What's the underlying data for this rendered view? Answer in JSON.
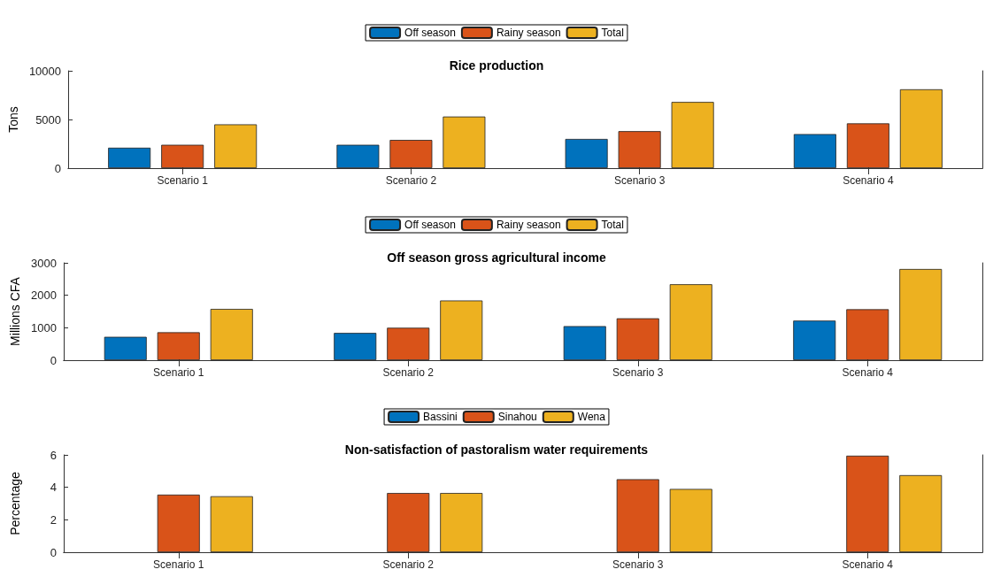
{
  "chart_data": [
    {
      "type": "bar",
      "title": "Rice production",
      "ylabel": "Tons",
      "categories": [
        "Scenario 1",
        "Scenario 2",
        "Scenario 3",
        "Scenario 4"
      ],
      "series": [
        {
          "name": "Off season",
          "color": "#0072bd",
          "values": [
            2100,
            2400,
            3000,
            3500
          ]
        },
        {
          "name": "Rainy season",
          "color": "#d95319",
          "values": [
            2400,
            2900,
            3800,
            4600
          ]
        },
        {
          "name": "Total",
          "color": "#edb120",
          "values": [
            4500,
            5300,
            6800,
            8100
          ]
        }
      ],
      "ylim": [
        0,
        10000
      ],
      "yticks": [
        0,
        5000,
        10000
      ],
      "grid": false,
      "legend": "top"
    },
    {
      "type": "bar",
      "title": "Off season gross agricultural income",
      "ylabel": "Millions CFA",
      "categories": [
        "Scenario 1",
        "Scenario 2",
        "Scenario 3",
        "Scenario 4"
      ],
      "series": [
        {
          "name": "Off season",
          "color": "#0072bd",
          "values": [
            720,
            840,
            1050,
            1220
          ]
        },
        {
          "name": "Rainy season",
          "color": "#d95319",
          "values": [
            860,
            1000,
            1290,
            1570
          ]
        },
        {
          "name": "Total",
          "color": "#edb120",
          "values": [
            1580,
            1840,
            2340,
            2810
          ]
        }
      ],
      "ylim": [
        0,
        3000
      ],
      "yticks": [
        0,
        1000,
        2000,
        3000
      ],
      "grid": false,
      "legend": "top"
    },
    {
      "type": "bar",
      "title": "Non-satisfaction of pastoralism water requirements",
      "ylabel": "Percentage",
      "categories": [
        "Scenario 1",
        "Scenario 2",
        "Scenario 3",
        "Scenario 4"
      ],
      "series": [
        {
          "name": "Bassini",
          "color": "#0072bd",
          "values": [
            0,
            0,
            0,
            0
          ]
        },
        {
          "name": "Sinahou",
          "color": "#d95319",
          "values": [
            3.55,
            3.65,
            4.5,
            5.95
          ]
        },
        {
          "name": "Wena",
          "color": "#edb120",
          "values": [
            3.45,
            3.65,
            3.9,
            4.75
          ]
        }
      ],
      "ylim": [
        0,
        6
      ],
      "yticks": [
        0,
        2,
        4,
        6
      ],
      "grid": false,
      "legend": "top"
    }
  ]
}
